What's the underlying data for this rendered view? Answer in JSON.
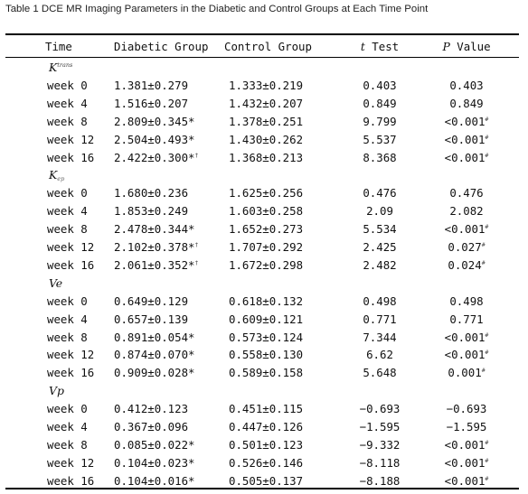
{
  "caption": "Table 1 DCE MR Imaging Parameters in the Diabetic and Control Groups at Each Time Point",
  "header": {
    "time": "Time",
    "diabetic": "Diabetic Group",
    "control": "Control Group",
    "t_var": "t",
    "t_label": " Test",
    "p_var": "P",
    "p_label": " Value"
  },
  "sections": [
    {
      "name": "K",
      "name_sup": "trans",
      "name_sub": "",
      "rows": [
        {
          "time": "week 0",
          "diabetic": "1.381±0.279",
          "d_mark": "",
          "control": "1.333±0.219",
          "t": "0.403",
          "p": "0.403",
          "p_mark": ""
        },
        {
          "time": "week 4",
          "diabetic": "1.516±0.207",
          "d_mark": "",
          "control": "1.432±0.207",
          "t": "0.849",
          "p": "0.849",
          "p_mark": ""
        },
        {
          "time": "week 8",
          "diabetic": "2.809±0.345*",
          "d_mark": "",
          "control": "1.378±0.251",
          "t": "9.799",
          "p": "<0.001",
          "p_mark": "#"
        },
        {
          "time": "week 12",
          "diabetic": "2.504±0.493*",
          "d_mark": "",
          "control": "1.430±0.262",
          "t": "5.537",
          "p": "<0.001",
          "p_mark": "#"
        },
        {
          "time": "week 16",
          "diabetic": "2.422±0.300*",
          "d_mark": "†",
          "control": "1.368±0.213",
          "t": "8.368",
          "p": "<0.001",
          "p_mark": "#"
        }
      ]
    },
    {
      "name": "K",
      "name_sup": "",
      "name_sub": "ep",
      "rows": [
        {
          "time": "week 0",
          "diabetic": "1.680±0.236",
          "d_mark": "",
          "control": "1.625±0.256",
          "t": "0.476",
          "p": "0.476",
          "p_mark": ""
        },
        {
          "time": "week 4",
          "diabetic": "1.853±0.249",
          "d_mark": "",
          "control": "1.603±0.258",
          "t": "2.09",
          "p": "2.082",
          "p_mark": ""
        },
        {
          "time": "week 8",
          "diabetic": "2.478±0.344*",
          "d_mark": "",
          "control": "1.652±0.273",
          "t": "5.534",
          "p": "<0.001",
          "p_mark": "#"
        },
        {
          "time": "week 12",
          "diabetic": "2.102±0.378*",
          "d_mark": "†",
          "control": "1.707±0.292",
          "t": "2.425",
          "p": "0.027",
          "p_mark": "#"
        },
        {
          "time": "week 16",
          "diabetic": "2.061±0.352*",
          "d_mark": "†",
          "control": "1.672±0.298",
          "t": "2.482",
          "p": "0.024",
          "p_mark": "#"
        }
      ]
    },
    {
      "name": "Ve",
      "name_sup": "",
      "name_sub": "",
      "rows": [
        {
          "time": "week 0",
          "diabetic": "0.649±0.129",
          "d_mark": "",
          "control": "0.618±0.132",
          "t": "0.498",
          "p": "0.498",
          "p_mark": ""
        },
        {
          "time": "week 4",
          "diabetic": "0.657±0.139",
          "d_mark": "",
          "control": "0.609±0.121",
          "t": "0.771",
          "p": "0.771",
          "p_mark": ""
        },
        {
          "time": "week 8",
          "diabetic": "0.891±0.054*",
          "d_mark": "",
          "control": "0.573±0.124",
          "t": "7.344",
          "p": "<0.001",
          "p_mark": "#"
        },
        {
          "time": "week 12",
          "diabetic": "0.874±0.070*",
          "d_mark": "",
          "control": "0.558±0.130",
          "t": "6.62",
          "p": "<0.001",
          "p_mark": "#"
        },
        {
          "time": "week 16",
          "diabetic": "0.909±0.028*",
          "d_mark": "",
          "control": "0.589±0.158",
          "t": "5.648",
          "p": "0.001",
          "p_mark": "#"
        }
      ]
    },
    {
      "name": "Vp",
      "name_sup": "",
      "name_sub": "",
      "rows": [
        {
          "time": "week 0",
          "diabetic": "0.412±0.123",
          "d_mark": "",
          "control": "0.451±0.115",
          "t": "−0.693",
          "p": "−0.693",
          "p_mark": ""
        },
        {
          "time": "week 4",
          "diabetic": "0.367±0.096",
          "d_mark": "",
          "control": "0.447±0.126",
          "t": "−1.595",
          "p": "−1.595",
          "p_mark": ""
        },
        {
          "time": "week 8",
          "diabetic": "0.085±0.022*",
          "d_mark": "",
          "control": "0.501±0.123",
          "t": "−9.332",
          "p": "<0.001",
          "p_mark": "#"
        },
        {
          "time": "week 12",
          "diabetic": "0.104±0.023*",
          "d_mark": "",
          "control": "0.526±0.146",
          "t": "−8.118",
          "p": "<0.001",
          "p_mark": "#"
        },
        {
          "time": "week 16",
          "diabetic": "0.104±0.016*",
          "d_mark": "",
          "control": "0.505±0.137",
          "t": "−8.188",
          "p": "<0.001",
          "p_mark": "#"
        }
      ]
    }
  ]
}
